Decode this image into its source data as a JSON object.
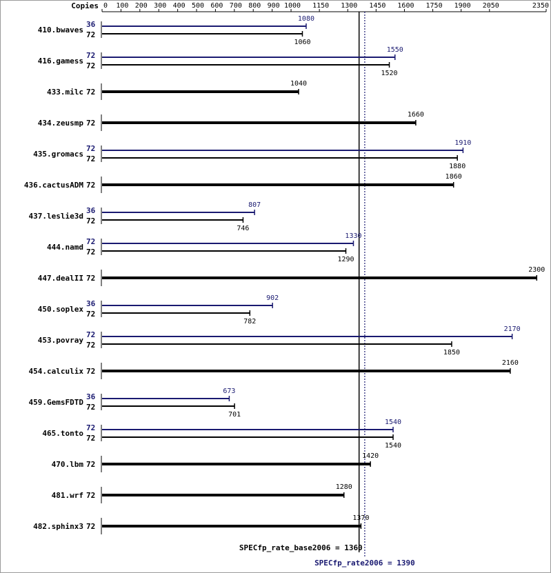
{
  "chart_data": {
    "type": "bar",
    "orientation": "horizontal",
    "copies_label": "Copies",
    "categories": [
      "410.bwaves",
      "416.gamess",
      "433.milc",
      "434.zeusmp",
      "435.gromacs",
      "436.cactusADM",
      "437.leslie3d",
      "444.namd",
      "447.dealII",
      "450.soplex",
      "453.povray",
      "454.calculix",
      "459.GemsFDTD",
      "465.tonto",
      "470.lbm",
      "481.wrf",
      "482.sphinx3"
    ],
    "series": [
      {
        "color": "#191970",
        "copies": [
          36,
          72,
          null,
          null,
          72,
          null,
          36,
          72,
          null,
          36,
          72,
          null,
          36,
          72,
          null,
          null,
          null
        ],
        "values": [
          1080,
          1550,
          null,
          null,
          1910,
          null,
          807,
          1330,
          null,
          902,
          2170,
          null,
          673,
          1540,
          null,
          null,
          null
        ]
      },
      {
        "color": "#000000",
        "copies": [
          72,
          72,
          72,
          72,
          72,
          72,
          72,
          72,
          72,
          72,
          72,
          72,
          72,
          72,
          72,
          72,
          72
        ],
        "values": [
          1060,
          1520,
          1040,
          1660,
          1880,
          1860,
          746,
          1290,
          2300,
          782,
          1850,
          2160,
          701,
          1540,
          1420,
          1280,
          1370
        ]
      }
    ],
    "xlim": [
      0,
      2350
    ],
    "xticks": [
      0,
      100,
      200,
      300,
      400,
      500,
      600,
      700,
      800,
      900,
      1000,
      1150,
      1300,
      1450,
      1600,
      1750,
      1900,
      2050,
      2350
    ],
    "reference_lines": [
      {
        "label": "SPECfp_rate_base2006 = 1360",
        "value": 1360,
        "color": "#000000",
        "style": "solid"
      },
      {
        "label": "SPECfp_rate2006 = 1390",
        "value": 1390,
        "color": "#191970",
        "style": "dotted"
      }
    ]
  }
}
